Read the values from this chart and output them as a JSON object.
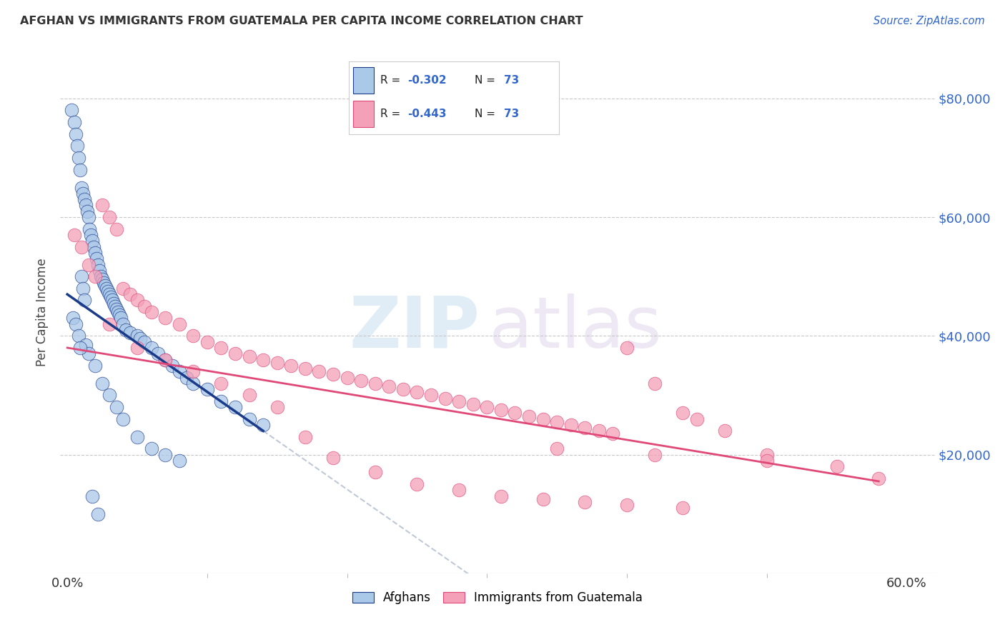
{
  "title": "AFGHAN VS IMMIGRANTS FROM GUATEMALA PER CAPITA INCOME CORRELATION CHART",
  "source": "Source: ZipAtlas.com",
  "ylabel": "Per Capita Income",
  "ytick_labels": [
    "$20,000",
    "$40,000",
    "$60,000",
    "$80,000"
  ],
  "ytick_vals": [
    20000,
    40000,
    60000,
    80000
  ],
  "ylim": [
    0,
    88000
  ],
  "xlim": [
    -0.5,
    62
  ],
  "xtick_left_label": "0.0%",
  "xtick_right_label": "60.0%",
  "xtick_left_val": 0,
  "xtick_right_val": 60,
  "color_afghan": "#aac8e8",
  "color_guatemala": "#f4a0b8",
  "color_trend_afghan": "#1a3a8a",
  "color_trend_guatemala": "#e04878",
  "color_trend_ext": "#c0c8d8",
  "afghans_x": [
    0.3,
    0.5,
    0.6,
    0.7,
    0.8,
    0.9,
    1.0,
    1.1,
    1.2,
    1.3,
    1.4,
    1.5,
    1.6,
    1.7,
    1.8,
    1.9,
    2.0,
    2.1,
    2.2,
    2.3,
    2.4,
    2.5,
    2.6,
    2.7,
    2.8,
    2.9,
    3.0,
    3.1,
    3.2,
    3.3,
    3.4,
    3.5,
    3.6,
    3.7,
    3.8,
    4.0,
    4.2,
    4.5,
    5.0,
    5.2,
    5.5,
    6.0,
    6.5,
    7.0,
    7.5,
    8.0,
    8.5,
    9.0,
    10.0,
    11.0,
    12.0,
    13.0,
    14.0,
    1.0,
    1.1,
    1.2,
    0.4,
    0.6,
    0.8,
    1.3,
    1.5,
    2.0,
    2.5,
    3.0,
    3.5,
    4.0,
    5.0,
    6.0,
    7.0,
    8.0,
    2.2,
    1.8,
    0.9
  ],
  "afghans_y": [
    78000,
    76000,
    74000,
    72000,
    70000,
    68000,
    65000,
    64000,
    63000,
    62000,
    61000,
    60000,
    58000,
    57000,
    56000,
    55000,
    54000,
    53000,
    52000,
    51000,
    50000,
    49500,
    49000,
    48500,
    48000,
    47500,
    47000,
    46500,
    46000,
    45500,
    45000,
    44500,
    44000,
    43500,
    43000,
    42000,
    41000,
    40500,
    40000,
    39500,
    39000,
    38000,
    37000,
    36000,
    35000,
    34000,
    33000,
    32000,
    31000,
    29000,
    28000,
    26000,
    25000,
    50000,
    48000,
    46000,
    43000,
    42000,
    40000,
    38500,
    37000,
    35000,
    32000,
    30000,
    28000,
    26000,
    23000,
    21000,
    20000,
    19000,
    10000,
    13000,
    38000
  ],
  "guatemala_x": [
    0.5,
    1.0,
    1.5,
    2.0,
    2.5,
    3.0,
    3.5,
    4.0,
    4.5,
    5.0,
    5.5,
    6.0,
    7.0,
    8.0,
    9.0,
    10.0,
    11.0,
    12.0,
    13.0,
    14.0,
    15.0,
    16.0,
    17.0,
    18.0,
    19.0,
    20.0,
    21.0,
    22.0,
    23.0,
    24.0,
    25.0,
    26.0,
    27.0,
    28.0,
    29.0,
    30.0,
    31.0,
    32.0,
    33.0,
    34.0,
    35.0,
    36.0,
    37.0,
    38.0,
    39.0,
    40.0,
    42.0,
    44.0,
    45.0,
    47.0,
    50.0,
    55.0,
    58.0,
    3.0,
    5.0,
    7.0,
    9.0,
    11.0,
    13.0,
    15.0,
    17.0,
    19.0,
    22.0,
    25.0,
    28.0,
    31.0,
    34.0,
    37.0,
    40.0,
    44.0,
    35.0,
    42.0,
    50.0
  ],
  "guatemala_y": [
    57000,
    55000,
    52000,
    50000,
    62000,
    60000,
    58000,
    48000,
    47000,
    46000,
    45000,
    44000,
    43000,
    42000,
    40000,
    39000,
    38000,
    37000,
    36500,
    36000,
    35500,
    35000,
    34500,
    34000,
    33500,
    33000,
    32500,
    32000,
    31500,
    31000,
    30500,
    30000,
    29500,
    29000,
    28500,
    28000,
    27500,
    27000,
    26500,
    26000,
    25500,
    25000,
    24500,
    24000,
    23500,
    38000,
    32000,
    27000,
    26000,
    24000,
    20000,
    18000,
    16000,
    42000,
    38000,
    36000,
    34000,
    32000,
    30000,
    28000,
    23000,
    19500,
    17000,
    15000,
    14000,
    13000,
    12500,
    12000,
    11500,
    11000,
    21000,
    20000,
    19000
  ]
}
